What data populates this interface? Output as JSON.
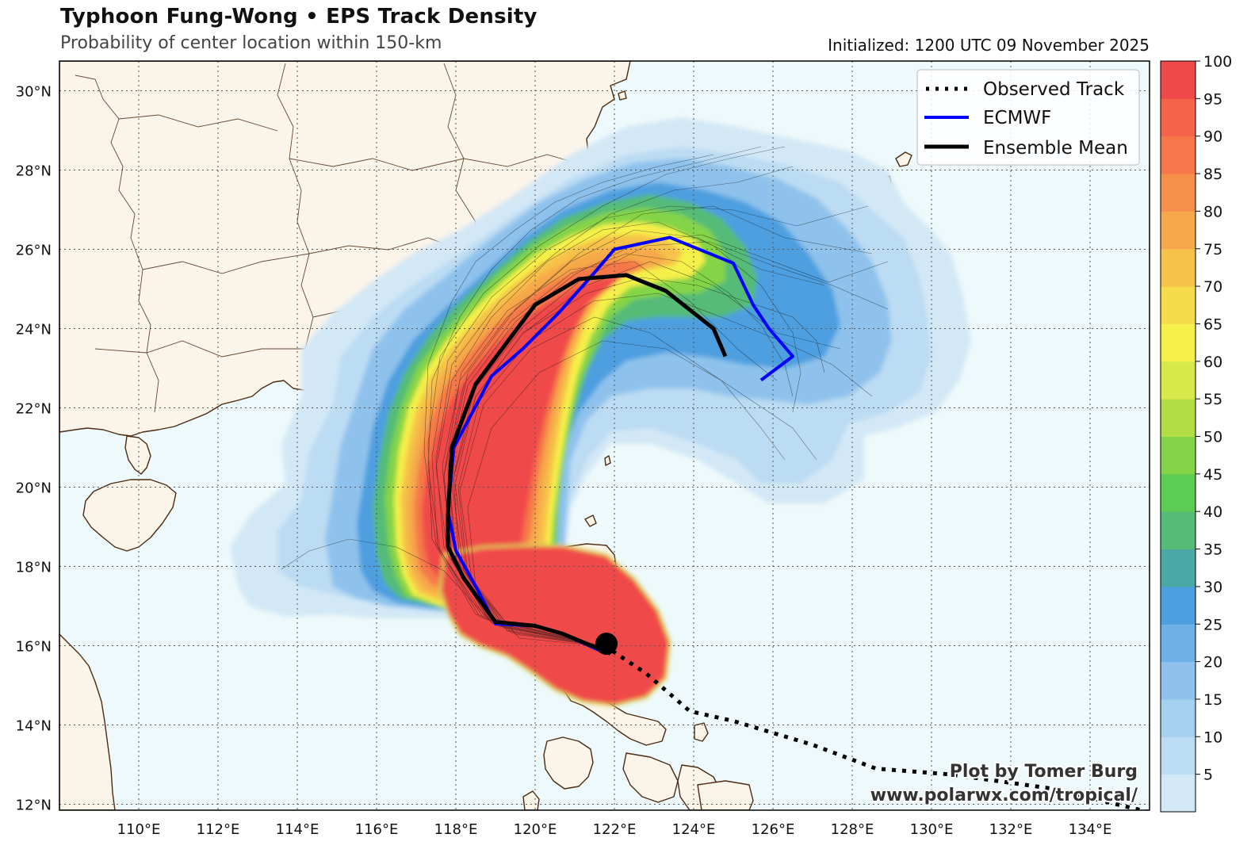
{
  "header": {
    "title": "Typhoon Fung-Wong • EPS Track Density",
    "subtitle": "Probability of center location within 150-km",
    "initialized": "Initialized: 1200 UTC 09 November 2025"
  },
  "map": {
    "lon_range": [
      108.0,
      135.5
    ],
    "lat_range": [
      11.85,
      30.75
    ],
    "lon_ticks": [
      {
        "value": 110,
        "label": "110°E"
      },
      {
        "value": 112,
        "label": "112°E"
      },
      {
        "value": 114,
        "label": "114°E"
      },
      {
        "value": 116,
        "label": "116°E"
      },
      {
        "value": 118,
        "label": "118°E"
      },
      {
        "value": 120,
        "label": "120°E"
      },
      {
        "value": 122,
        "label": "122°E"
      },
      {
        "value": 124,
        "label": "124°E"
      },
      {
        "value": 126,
        "label": "126°E"
      },
      {
        "value": 128,
        "label": "128°E"
      },
      {
        "value": 130,
        "label": "130°E"
      },
      {
        "value": 132,
        "label": "132°E"
      },
      {
        "value": 134,
        "label": "134°E"
      }
    ],
    "lat_ticks": [
      {
        "value": 12,
        "label": "12°N"
      },
      {
        "value": 14,
        "label": "14°N"
      },
      {
        "value": 16,
        "label": "16°N"
      },
      {
        "value": 18,
        "label": "18°N"
      },
      {
        "value": 20,
        "label": "20°N"
      },
      {
        "value": 22,
        "label": "22°N"
      },
      {
        "value": 24,
        "label": "24°N"
      },
      {
        "value": 26,
        "label": "26°N"
      },
      {
        "value": 28,
        "label": "28°N"
      },
      {
        "value": 30,
        "label": "30°N"
      }
    ],
    "colors": {
      "ocean": "#eef9fb",
      "land": "#fbf4e9",
      "coast": "#4a2a12",
      "grid": "#555555"
    }
  },
  "legend": {
    "items": [
      {
        "label": "Observed Track",
        "style": "dotted",
        "color": "#000000"
      },
      {
        "label": "ECMWF",
        "style": "solid",
        "color": "#0000ff"
      },
      {
        "label": "Ensemble Mean",
        "style": "solid",
        "color": "#000000"
      }
    ]
  },
  "colorbar": {
    "ticks": [
      "5",
      "10",
      "15",
      "20",
      "25",
      "30",
      "35",
      "40",
      "45",
      "50",
      "55",
      "60",
      "65",
      "70",
      "75",
      "80",
      "85",
      "90",
      "95",
      "100"
    ],
    "colors": [
      "#d3e8f6",
      "#bcdcf3",
      "#a6d0ef",
      "#8ec2ec",
      "#6db1e7",
      "#4d9fe0",
      "#4aa8a6",
      "#55bb77",
      "#5ccc55",
      "#84d447",
      "#b2de44",
      "#d7e94a",
      "#f5f04a",
      "#f6dc4a",
      "#f6c24a",
      "#f6a94a",
      "#f68f4a",
      "#f6784a",
      "#f5634a",
      "#f04a48"
    ]
  },
  "tracks": {
    "observed": [
      [
        135.5,
        11.8
      ],
      [
        133,
        12.4
      ],
      [
        130.5,
        12.75
      ],
      [
        128.6,
        12.9
      ],
      [
        127,
        13.5
      ],
      [
        125,
        14.1
      ],
      [
        123.9,
        14.35
      ],
      [
        122.8,
        15.3
      ],
      [
        121.9,
        15.9
      ]
    ],
    "ecmwf": [
      [
        121.8,
        15.8
      ],
      [
        120.7,
        16.3
      ],
      [
        120.0,
        16.5
      ],
      [
        119.0,
        16.55
      ],
      [
        118.5,
        17.5
      ],
      [
        118.0,
        18.4
      ],
      [
        117.8,
        19.4
      ],
      [
        117.95,
        21.0
      ],
      [
        118.9,
        22.8
      ],
      [
        119.7,
        23.5
      ],
      [
        120.6,
        24.4
      ],
      [
        121.4,
        25.3
      ],
      [
        122.0,
        26.0
      ],
      [
        123.4,
        26.3
      ],
      [
        125.0,
        25.65
      ],
      [
        125.5,
        24.6
      ],
      [
        125.9,
        24.0
      ],
      [
        126.5,
        23.3
      ],
      [
        125.7,
        22.7
      ]
    ],
    "mean": [
      [
        121.9,
        15.8
      ],
      [
        120.7,
        16.3
      ],
      [
        120.0,
        16.5
      ],
      [
        119.0,
        16.6
      ],
      [
        118.2,
        17.7
      ],
      [
        117.8,
        18.5
      ],
      [
        117.8,
        19.3
      ],
      [
        117.9,
        21.0
      ],
      [
        118.5,
        22.6
      ],
      [
        119.4,
        23.8
      ],
      [
        120.0,
        24.6
      ],
      [
        121.1,
        25.25
      ],
      [
        122.3,
        25.35
      ],
      [
        123.3,
        24.95
      ],
      [
        124.5,
        24.0
      ],
      [
        124.8,
        23.3
      ]
    ],
    "center_marker": [
      121.8,
      16.05
    ]
  },
  "credit": {
    "line1": "Plot by Tomer Burg",
    "line2": "www.polarwx.com/tropical/"
  }
}
